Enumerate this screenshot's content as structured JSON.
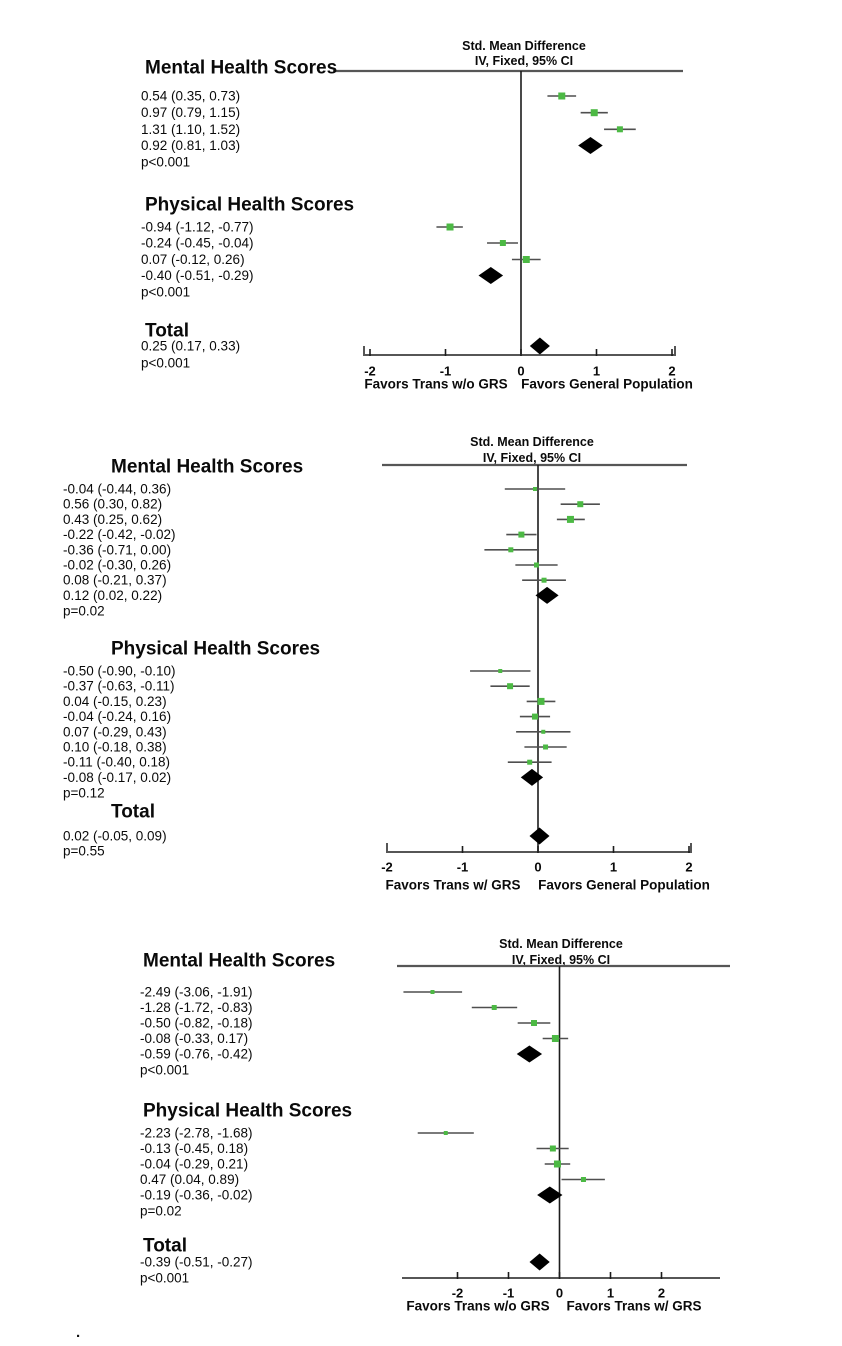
{
  "chart_data": [
    {
      "type": "forest",
      "title": "Std. Mean Difference",
      "subtitle": "IV, Fixed, 95% CI",
      "x_ticks": [
        -2,
        -1,
        0,
        1,
        2
      ],
      "xlim": [
        -2,
        2
      ],
      "favors_left": "Favors Trans w/o GRS",
      "favors_right": "Favors General Population",
      "sections": [
        {
          "label": "Mental Health Scores",
          "studies": [
            {
              "label": "0.54 (0.35, 0.73)",
              "est": 0.54,
              "lo": 0.35,
              "hi": 0.73
            },
            {
              "label": "0.97 (0.79, 1.15)",
              "est": 0.97,
              "lo": 0.79,
              "hi": 1.15
            },
            {
              "label": "1.31 (1.10, 1.52)",
              "est": 1.31,
              "lo": 1.1,
              "hi": 1.52
            }
          ],
          "summary": {
            "label": "0.92 (0.81, 1.03)",
            "est": 0.92,
            "lo": 0.81,
            "hi": 1.03
          },
          "p_label": "p<0.001"
        },
        {
          "label": "Physical Health Scores",
          "studies": [
            {
              "label": "-0.94 (-1.12, -0.77)",
              "est": -0.94,
              "lo": -1.12,
              "hi": -0.77
            },
            {
              "label": "-0.24 (-0.45, -0.04)",
              "est": -0.24,
              "lo": -0.45,
              "hi": -0.04
            },
            {
              "label": "0.07 (-0.12, 0.26)",
              "est": 0.07,
              "lo": -0.12,
              "hi": 0.26
            }
          ],
          "summary": {
            "label": "-0.40 (-0.51, -0.29)",
            "est": -0.4,
            "lo": -0.51,
            "hi": -0.29
          },
          "p_label": "p<0.001"
        },
        {
          "label": "Total",
          "studies": [],
          "summary": {
            "label": "0.25 (0.17, 0.33)",
            "est": 0.25,
            "lo": 0.17,
            "hi": 0.33
          },
          "p_label": "p<0.001"
        }
      ]
    },
    {
      "type": "forest",
      "title": "Std. Mean Difference",
      "subtitle": "IV, Fixed, 95% CI",
      "x_ticks": [
        -2,
        -1,
        0,
        1,
        2
      ],
      "xlim": [
        -2,
        2
      ],
      "favors_left": "Favors Trans w/ GRS",
      "favors_right": "Favors General Population",
      "sections": [
        {
          "label": "Mental Health Scores",
          "studies": [
            {
              "label": "-0.04 (-0.44, 0.36)",
              "est": -0.04,
              "lo": -0.44,
              "hi": 0.36
            },
            {
              "label": "0.56 (0.30, 0.82)",
              "est": 0.56,
              "lo": 0.3,
              "hi": 0.82
            },
            {
              "label": "0.43 (0.25, 0.62)",
              "est": 0.43,
              "lo": 0.25,
              "hi": 0.62
            },
            {
              "label": "-0.22 (-0.42, -0.02)",
              "est": -0.22,
              "lo": -0.42,
              "hi": -0.02
            },
            {
              "label": "-0.36 (-0.71, 0.00)",
              "est": -0.36,
              "lo": -0.71,
              "hi": 0.0
            },
            {
              "label": "-0.02 (-0.30, 0.26)",
              "est": -0.02,
              "lo": -0.3,
              "hi": 0.26
            },
            {
              "label": "0.08 (-0.21, 0.37)",
              "est": 0.08,
              "lo": -0.21,
              "hi": 0.37
            }
          ],
          "summary": {
            "label": "0.12 (0.02, 0.22)",
            "est": 0.12,
            "lo": 0.02,
            "hi": 0.22
          },
          "p_label": "p=0.02"
        },
        {
          "label": "Physical Health Scores",
          "studies": [
            {
              "label": "-0.50 (-0.90, -0.10)",
              "est": -0.5,
              "lo": -0.9,
              "hi": -0.1
            },
            {
              "label": "-0.37 (-0.63, -0.11)",
              "est": -0.37,
              "lo": -0.63,
              "hi": -0.11
            },
            {
              "label": "0.04 (-0.15, 0.23)",
              "est": 0.04,
              "lo": -0.15,
              "hi": 0.23
            },
            {
              "label": "-0.04 (-0.24, 0.16)",
              "est": -0.04,
              "lo": -0.24,
              "hi": 0.16
            },
            {
              "label": "0.07 (-0.29, 0.43)",
              "est": 0.07,
              "lo": -0.29,
              "hi": 0.43
            },
            {
              "label": "0.10 (-0.18, 0.38)",
              "est": 0.1,
              "lo": -0.18,
              "hi": 0.38
            },
            {
              "label": "-0.11 (-0.40, 0.18)",
              "est": -0.11,
              "lo": -0.4,
              "hi": 0.18
            }
          ],
          "summary": {
            "label": "-0.08 (-0.17, 0.02)",
            "est": -0.08,
            "lo": -0.17,
            "hi": 0.02
          },
          "p_label": "p=0.12"
        },
        {
          "label": "Total",
          "studies": [],
          "summary": {
            "label": "0.02 (-0.05, 0.09)",
            "est": 0.02,
            "lo": -0.05,
            "hi": 0.09
          },
          "p_label": "p=0.55"
        }
      ]
    },
    {
      "type": "forest",
      "title": "Std. Mean Difference",
      "subtitle": "IV, Fixed, 95% CI",
      "x_ticks": [
        -2,
        -1,
        0,
        1,
        2
      ],
      "xlim": [
        -3.2,
        3.2
      ],
      "favors_left": "Favors Trans w/o GRS",
      "favors_right": "Favors Trans w/ GRS",
      "sections": [
        {
          "label": "Mental Health Scores",
          "studies": [
            {
              "label": "-2.49 (-3.06, -1.91)",
              "est": -2.49,
              "lo": -3.06,
              "hi": -1.91
            },
            {
              "label": "-1.28 (-1.72, -0.83)",
              "est": -1.28,
              "lo": -1.72,
              "hi": -0.83
            },
            {
              "label": "-0.50 (-0.82, -0.18)",
              "est": -0.5,
              "lo": -0.82,
              "hi": -0.18
            },
            {
              "label": "-0.08 (-0.33, 0.17)",
              "est": -0.08,
              "lo": -0.33,
              "hi": 0.17
            }
          ],
          "summary": {
            "label": "-0.59 (-0.76, -0.42)",
            "est": -0.59,
            "lo": -0.76,
            "hi": -0.42
          },
          "p_label": "p<0.001"
        },
        {
          "label": "Physical Health Scores",
          "studies": [
            {
              "label": "-2.23 (-2.78, -1.68)",
              "est": -2.23,
              "lo": -2.78,
              "hi": -1.68
            },
            {
              "label": "-0.13 (-0.45, 0.18)",
              "est": -0.13,
              "lo": -0.45,
              "hi": 0.18
            },
            {
              "label": "-0.04 (-0.29, 0.21)",
              "est": -0.04,
              "lo": -0.29,
              "hi": 0.21
            },
            {
              "label": "0.47 (0.04, 0.89)",
              "est": 0.47,
              "lo": 0.04,
              "hi": 0.89
            }
          ],
          "summary": {
            "label": "-0.19 (-0.36, -0.02)",
            "est": -0.19,
            "lo": -0.36,
            "hi": -0.02
          },
          "p_label": "p=0.02"
        },
        {
          "label": "Total",
          "studies": [],
          "summary": {
            "label": "-0.39 (-0.51, -0.27)",
            "est": -0.39,
            "lo": -0.51,
            "hi": -0.27
          },
          "p_label": "p<0.001"
        }
      ]
    }
  ],
  "colors": {
    "marker_green": "#4cb944",
    "ci_line": "#4f4f4f",
    "rule_gray": "#565656",
    "ink": "#0a0a0a"
  },
  "footnote": {
    "dot": "."
  }
}
